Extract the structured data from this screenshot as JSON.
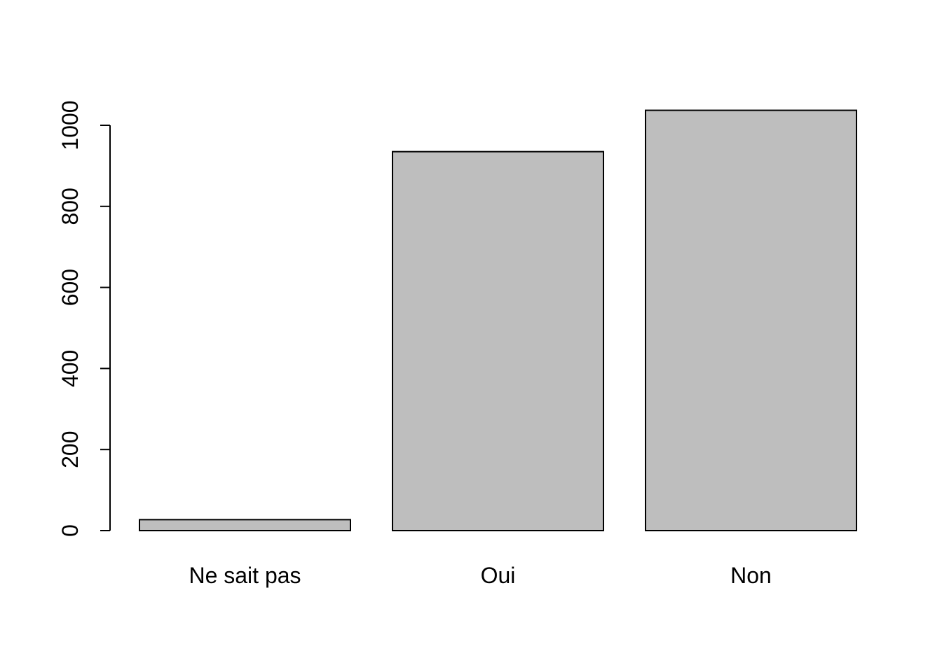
{
  "chart_data": {
    "type": "bar",
    "categories": [
      "Ne sait pas",
      "Oui",
      "Non"
    ],
    "values": [
      27,
      935,
      1037
    ],
    "title": "",
    "xlabel": "",
    "ylabel": "",
    "ylim": [
      0,
      1000
    ],
    "yticks": [
      "0",
      "200",
      "400",
      "600",
      "800",
      "1000"
    ],
    "grid": false,
    "legend": "none",
    "colors": {
      "bar_fill": "#bebebe",
      "bar_stroke": "#000000",
      "axis": "#000000",
      "background": "#ffffff"
    }
  }
}
